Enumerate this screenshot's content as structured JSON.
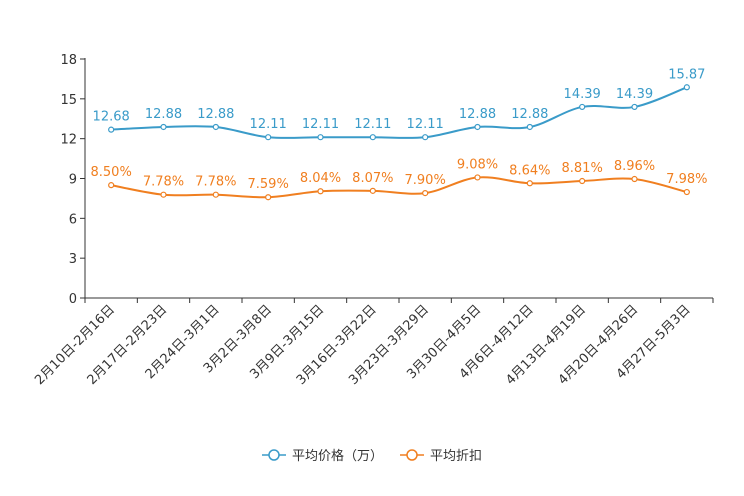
{
  "chart_data": {
    "type": "line",
    "title": "",
    "xlabel": "",
    "ylabel": "",
    "ylim": [
      0,
      18
    ],
    "yticks": [
      0,
      3,
      6,
      9,
      12,
      15,
      18
    ],
    "grid": false,
    "legend_position": "bottom-center",
    "categories": [
      "2月10日-2月16日",
      "2月17日-2月23日",
      "2月24日-3月1日",
      "3月2日-3月8日",
      "3月9日-3月15日",
      "3月16日-3月22日",
      "3月23日-3月29日",
      "3月30日-4月5日",
      "4月6日-4月12日",
      "4月13日-4月19日",
      "4月20日-4月26日",
      "4月27日-5月3日"
    ],
    "series": [
      {
        "name": "平均价格（万）",
        "color": "#3a9bc9",
        "values": [
          12.68,
          12.88,
          12.88,
          12.11,
          12.11,
          12.11,
          12.11,
          12.88,
          12.88,
          14.39,
          14.39,
          15.87
        ],
        "labels": [
          "12.68",
          "12.88",
          "12.88",
          "12.11",
          "12.11",
          "12.11",
          "12.11",
          "12.88",
          "12.88",
          "14.39",
          "14.39",
          "15.87"
        ]
      },
      {
        "name": "平均折扣",
        "color": "#f07f20",
        "values": [
          8.5,
          7.78,
          7.78,
          7.59,
          8.04,
          8.07,
          7.9,
          9.08,
          8.64,
          8.81,
          8.96,
          7.98
        ],
        "labels": [
          "8.50%",
          "7.78%",
          "7.78%",
          "7.59%",
          "8.04%",
          "8.07%",
          "7.90%",
          "9.08%",
          "8.64%",
          "8.81%",
          "8.96%",
          "7.98%"
        ]
      }
    ]
  }
}
